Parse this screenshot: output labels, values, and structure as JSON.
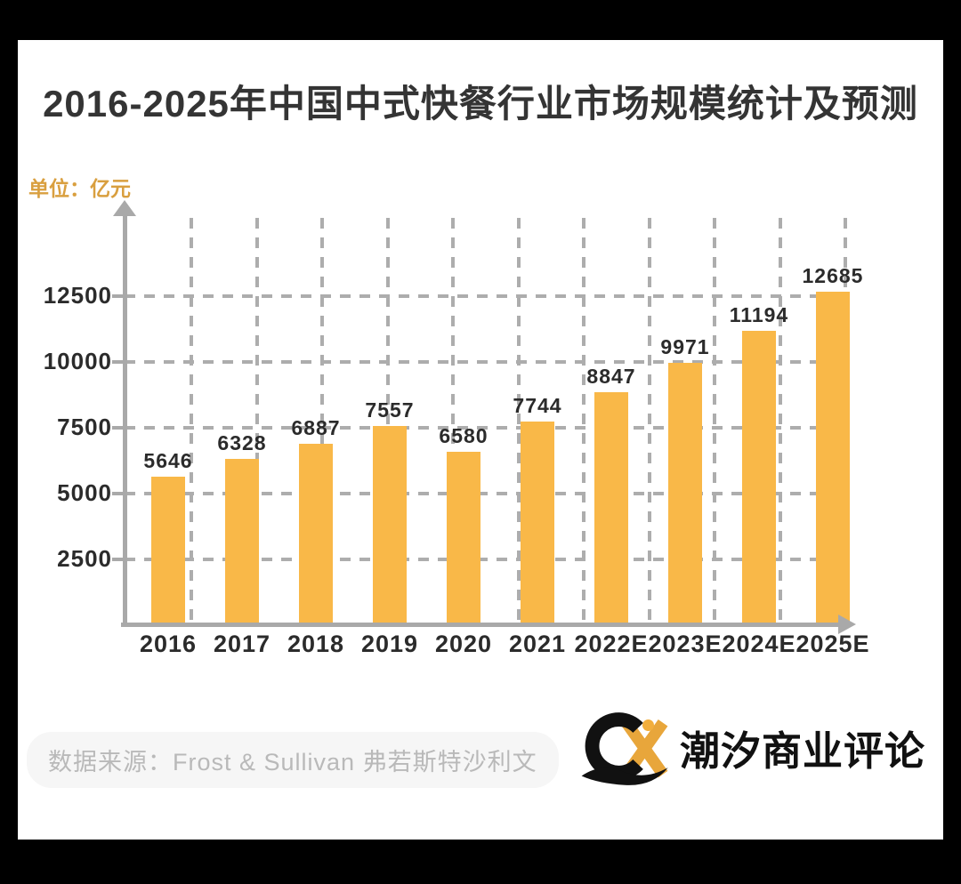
{
  "title": "2016-2025年中国中式快餐行业市场规模统计及预测",
  "unit_label": "单位：亿元",
  "chart_data": {
    "type": "bar",
    "title": "2016-2025年中国中式快餐行业市场规模统计及预测",
    "unit": "亿元",
    "categories": [
      "2016",
      "2017",
      "2018",
      "2019",
      "2020",
      "2021",
      "2022E",
      "2023E",
      "2024E",
      "2025E"
    ],
    "values": [
      5646,
      6328,
      6887,
      7557,
      6580,
      7744,
      8847,
      9971,
      11194,
      12685
    ],
    "yticks": [
      2500,
      5000,
      7500,
      10000,
      12500
    ],
    "ylim": [
      0,
      13700
    ],
    "xlabel": "",
    "ylabel": "单位：亿元",
    "grid": "dashed horizontal and vertical",
    "legend": "none",
    "value_labels_shown": true,
    "bar_color": "#F9B848"
  },
  "footer": {
    "source": "数据来源：Frost & Sullivan 弗若斯特沙利文",
    "brand_name": "潮汐商业评论",
    "brand_monogram": "CX"
  },
  "colors": {
    "bar": "#F9B848",
    "axis": "#A9A9A9",
    "grid": "#ADADAD",
    "title_text": "#343434",
    "unit_label_text": "#D99F3F",
    "value_text": "#2B2B2B",
    "source_text": "#B9B9B9",
    "brand_gold": "#E8A63B",
    "brand_black": "#111111",
    "frame": "#000000",
    "card": "#FFFFFF"
  }
}
